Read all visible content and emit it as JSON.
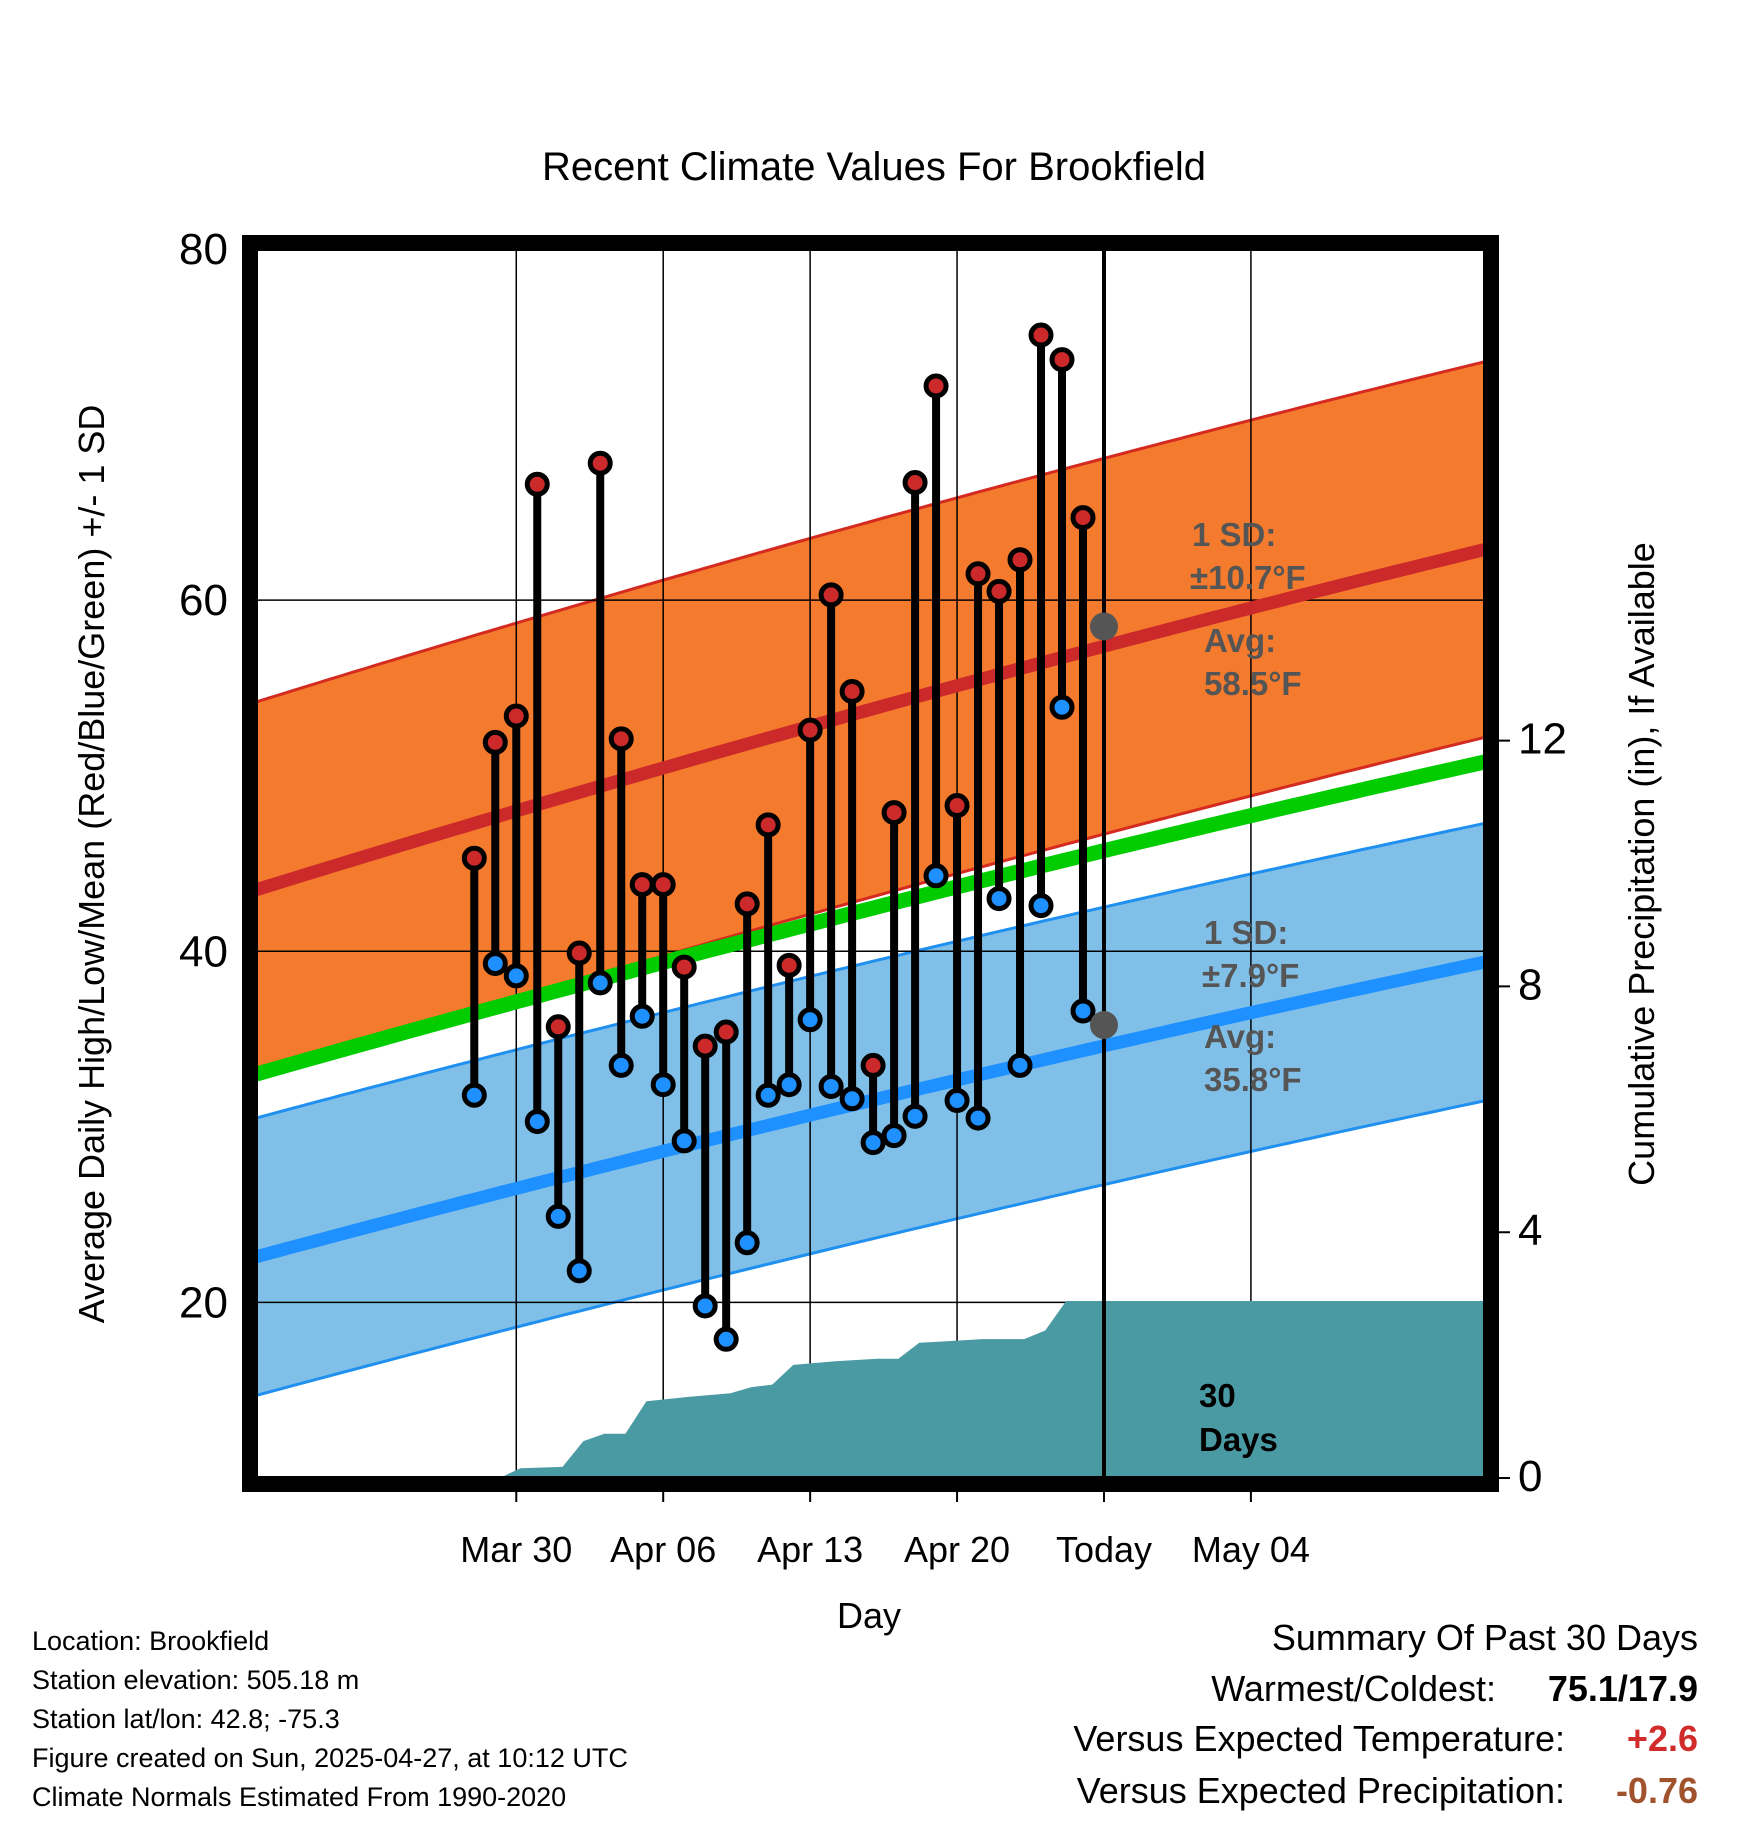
{
  "chart_data": {
    "type": "line",
    "title": "Recent Climate Values For Brookfield",
    "xlabel": "Day",
    "ylabel": "Average Daily High/Low/Mean (Red/Blue/Green) +/- 1 SD",
    "y2label": "Cumulative Precipitation (in), If Available",
    "ylim": [
      10,
      80
    ],
    "y2lim": [
      0,
      20
    ],
    "xlim": [
      -12.4,
      46.2
    ],
    "y_ticks": [
      "80",
      "60",
      "40",
      "20"
    ],
    "y_tick_values": [
      80,
      60,
      40,
      20
    ],
    "y_minor_values": [
      70,
      50,
      30,
      10
    ],
    "y2_ticks": [
      "12",
      "8",
      "4",
      "0"
    ],
    "y2_tick_values": [
      12,
      8,
      4,
      0
    ],
    "x_ticks": [
      "Mar 30",
      "Apr 06",
      "Apr 13",
      "Apr 20",
      "Today",
      "May 04"
    ],
    "x_tick_days": [
      0,
      7,
      14,
      21,
      28,
      35
    ],
    "today_day": 28,
    "daily_high": [
      45.3,
      51.9,
      53.4,
      66.6,
      35.7,
      39.9,
      67.8,
      52.1,
      43.8,
      43.8,
      39.1,
      34.6,
      35.4,
      42.7,
      47.2,
      39.2,
      52.6,
      60.3,
      54.8,
      33.5,
      47.9,
      66.7,
      72.2,
      48.3,
      61.5,
      60.5,
      62.3,
      75.1,
      73.7,
      64.7
    ],
    "daily_low": [
      31.8,
      39.3,
      38.6,
      30.3,
      24.9,
      21.8,
      38.2,
      33.5,
      36.3,
      32.4,
      29.2,
      19.8,
      17.9,
      23.4,
      31.8,
      32.4,
      36.1,
      32.3,
      31.6,
      29.1,
      29.5,
      30.6,
      44.3,
      31.5,
      30.5,
      43.0,
      33.5,
      42.6,
      53.9,
      36.6
    ],
    "precip_x": [
      -12.4,
      -0.8,
      0.2,
      2.2,
      3.2,
      4.2,
      5.2,
      6.2,
      8.2,
      10.2,
      11.2,
      12.2,
      13.2,
      15.2,
      16.2,
      17.2,
      18.2,
      19.2,
      20.2,
      21.2,
      22.2,
      24.2,
      25.2,
      26.2,
      27.2,
      28.2,
      29.2,
      30.2,
      46.2
    ],
    "precip_cum": [
      0.0,
      0.0,
      0.16,
      0.18,
      0.6,
      0.72,
      0.72,
      1.25,
      1.32,
      1.38,
      1.48,
      1.52,
      1.84,
      1.9,
      1.92,
      1.94,
      1.94,
      2.2,
      2.22,
      2.24,
      2.26,
      2.26,
      2.4,
      2.88,
      2.88,
      2.88,
      2.88,
      2.88,
      2.88
    ],
    "normal_high": {
      "start": 43.5,
      "end": 62.9,
      "sd": 10.7
    },
    "normal_low": {
      "start": 22.6,
      "end": 39.4,
      "sd": 7.9
    },
    "normal_mean": {
      "start": 33.0,
      "end": 50.8
    },
    "series": [
      {
        "name": "Daily High",
        "color": "#cc2a2a"
      },
      {
        "name": "Daily Low",
        "color": "#1e90ff"
      },
      {
        "name": "Normal Mean",
        "color": "#00cc00"
      },
      {
        "name": "Cumulative Precipitation",
        "color": "#4a9aa4"
      }
    ],
    "annotations": {
      "high_sd_label": "1 SD:",
      "high_sd_value": "±10.7°F",
      "high_avg_label": "Avg:",
      "high_avg_value": "58.5°F",
      "high_avg": 58.5,
      "low_sd_label": "1 SD:",
      "low_sd_value": "±7.9°F",
      "low_avg_label": "Avg:",
      "low_avg_value": "35.8°F",
      "low_avg": 35.8,
      "days_line1": "30",
      "days_line2": "Days"
    }
  },
  "footer": {
    "lines": [
      "Location: Brookfield",
      "Station elevation: 505.18 m",
      "Station lat/lon: 42.8; -75.3",
      "Figure created on Sun, 2025-04-27, at 10:12 UTC",
      "Climate Normals Estimated From 1990-2020"
    ]
  },
  "summary": {
    "title": "Summary Of Past 30 Days",
    "warm_cold_label": "Warmest/Coldest:",
    "warm_cold_value": "75.1/17.9",
    "temp_label": "Versus Expected Temperature:",
    "temp_value": "+2.6",
    "temp_color": "#d22b2b",
    "precip_label": "Versus Expected Precipitation:",
    "precip_value": "-0.76",
    "precip_color": "#a0522d"
  },
  "colors": {
    "orange_band": "#f47b2e",
    "orange_edge": "#d42a1f",
    "blue_band": "#80c0e8",
    "blue_edge": "#2090f0",
    "precip_fill": "#4a9aa4",
    "marker_gray": "#555555"
  }
}
